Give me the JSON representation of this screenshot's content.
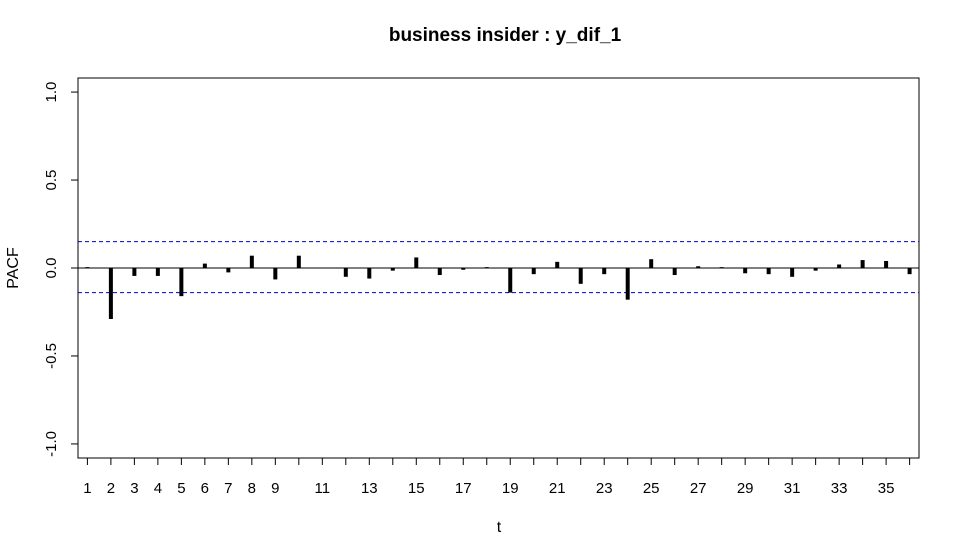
{
  "chart_data": {
    "type": "bar",
    "title": "business insider : y_dif_1",
    "xlabel": "t",
    "ylabel": "PACF",
    "xlim": [
      0.6,
      36.4
    ],
    "ylim": [
      -1.08,
      1.08
    ],
    "x_ticks": [
      1,
      2,
      3,
      4,
      5,
      6,
      7,
      8,
      9,
      11,
      13,
      15,
      17,
      19,
      21,
      23,
      25,
      27,
      29,
      31,
      33,
      35
    ],
    "y_ticks": [
      -1.0,
      -0.5,
      0.0,
      0.5,
      1.0
    ],
    "y_tick_labels": [
      "-1.0",
      "-0.5",
      "0.0",
      "0.5",
      "1.0"
    ],
    "confidence_bounds": [
      0.15,
      -0.14
    ],
    "grid": false,
    "x": [
      1,
      2,
      3,
      4,
      5,
      6,
      7,
      8,
      9,
      10,
      11,
      12,
      13,
      14,
      15,
      16,
      17,
      18,
      19,
      20,
      21,
      22,
      23,
      24,
      25,
      26,
      27,
      28,
      29,
      30,
      31,
      32,
      33,
      34,
      35,
      36
    ],
    "values": [
      0.005,
      -0.29,
      -0.045,
      -0.045,
      -0.16,
      0.025,
      -0.025,
      0.07,
      -0.065,
      0.07,
      0.0,
      -0.05,
      -0.06,
      -0.015,
      0.06,
      -0.04,
      -0.01,
      0.005,
      -0.14,
      -0.035,
      0.035,
      -0.09,
      -0.035,
      -0.18,
      0.05,
      -0.04,
      0.01,
      0.005,
      -0.03,
      -0.035,
      -0.05,
      -0.015,
      0.02,
      0.045,
      0.04,
      -0.035
    ],
    "colors": {
      "bars": "#000000",
      "bounds": "#0000cc",
      "axes": "#000000"
    }
  }
}
